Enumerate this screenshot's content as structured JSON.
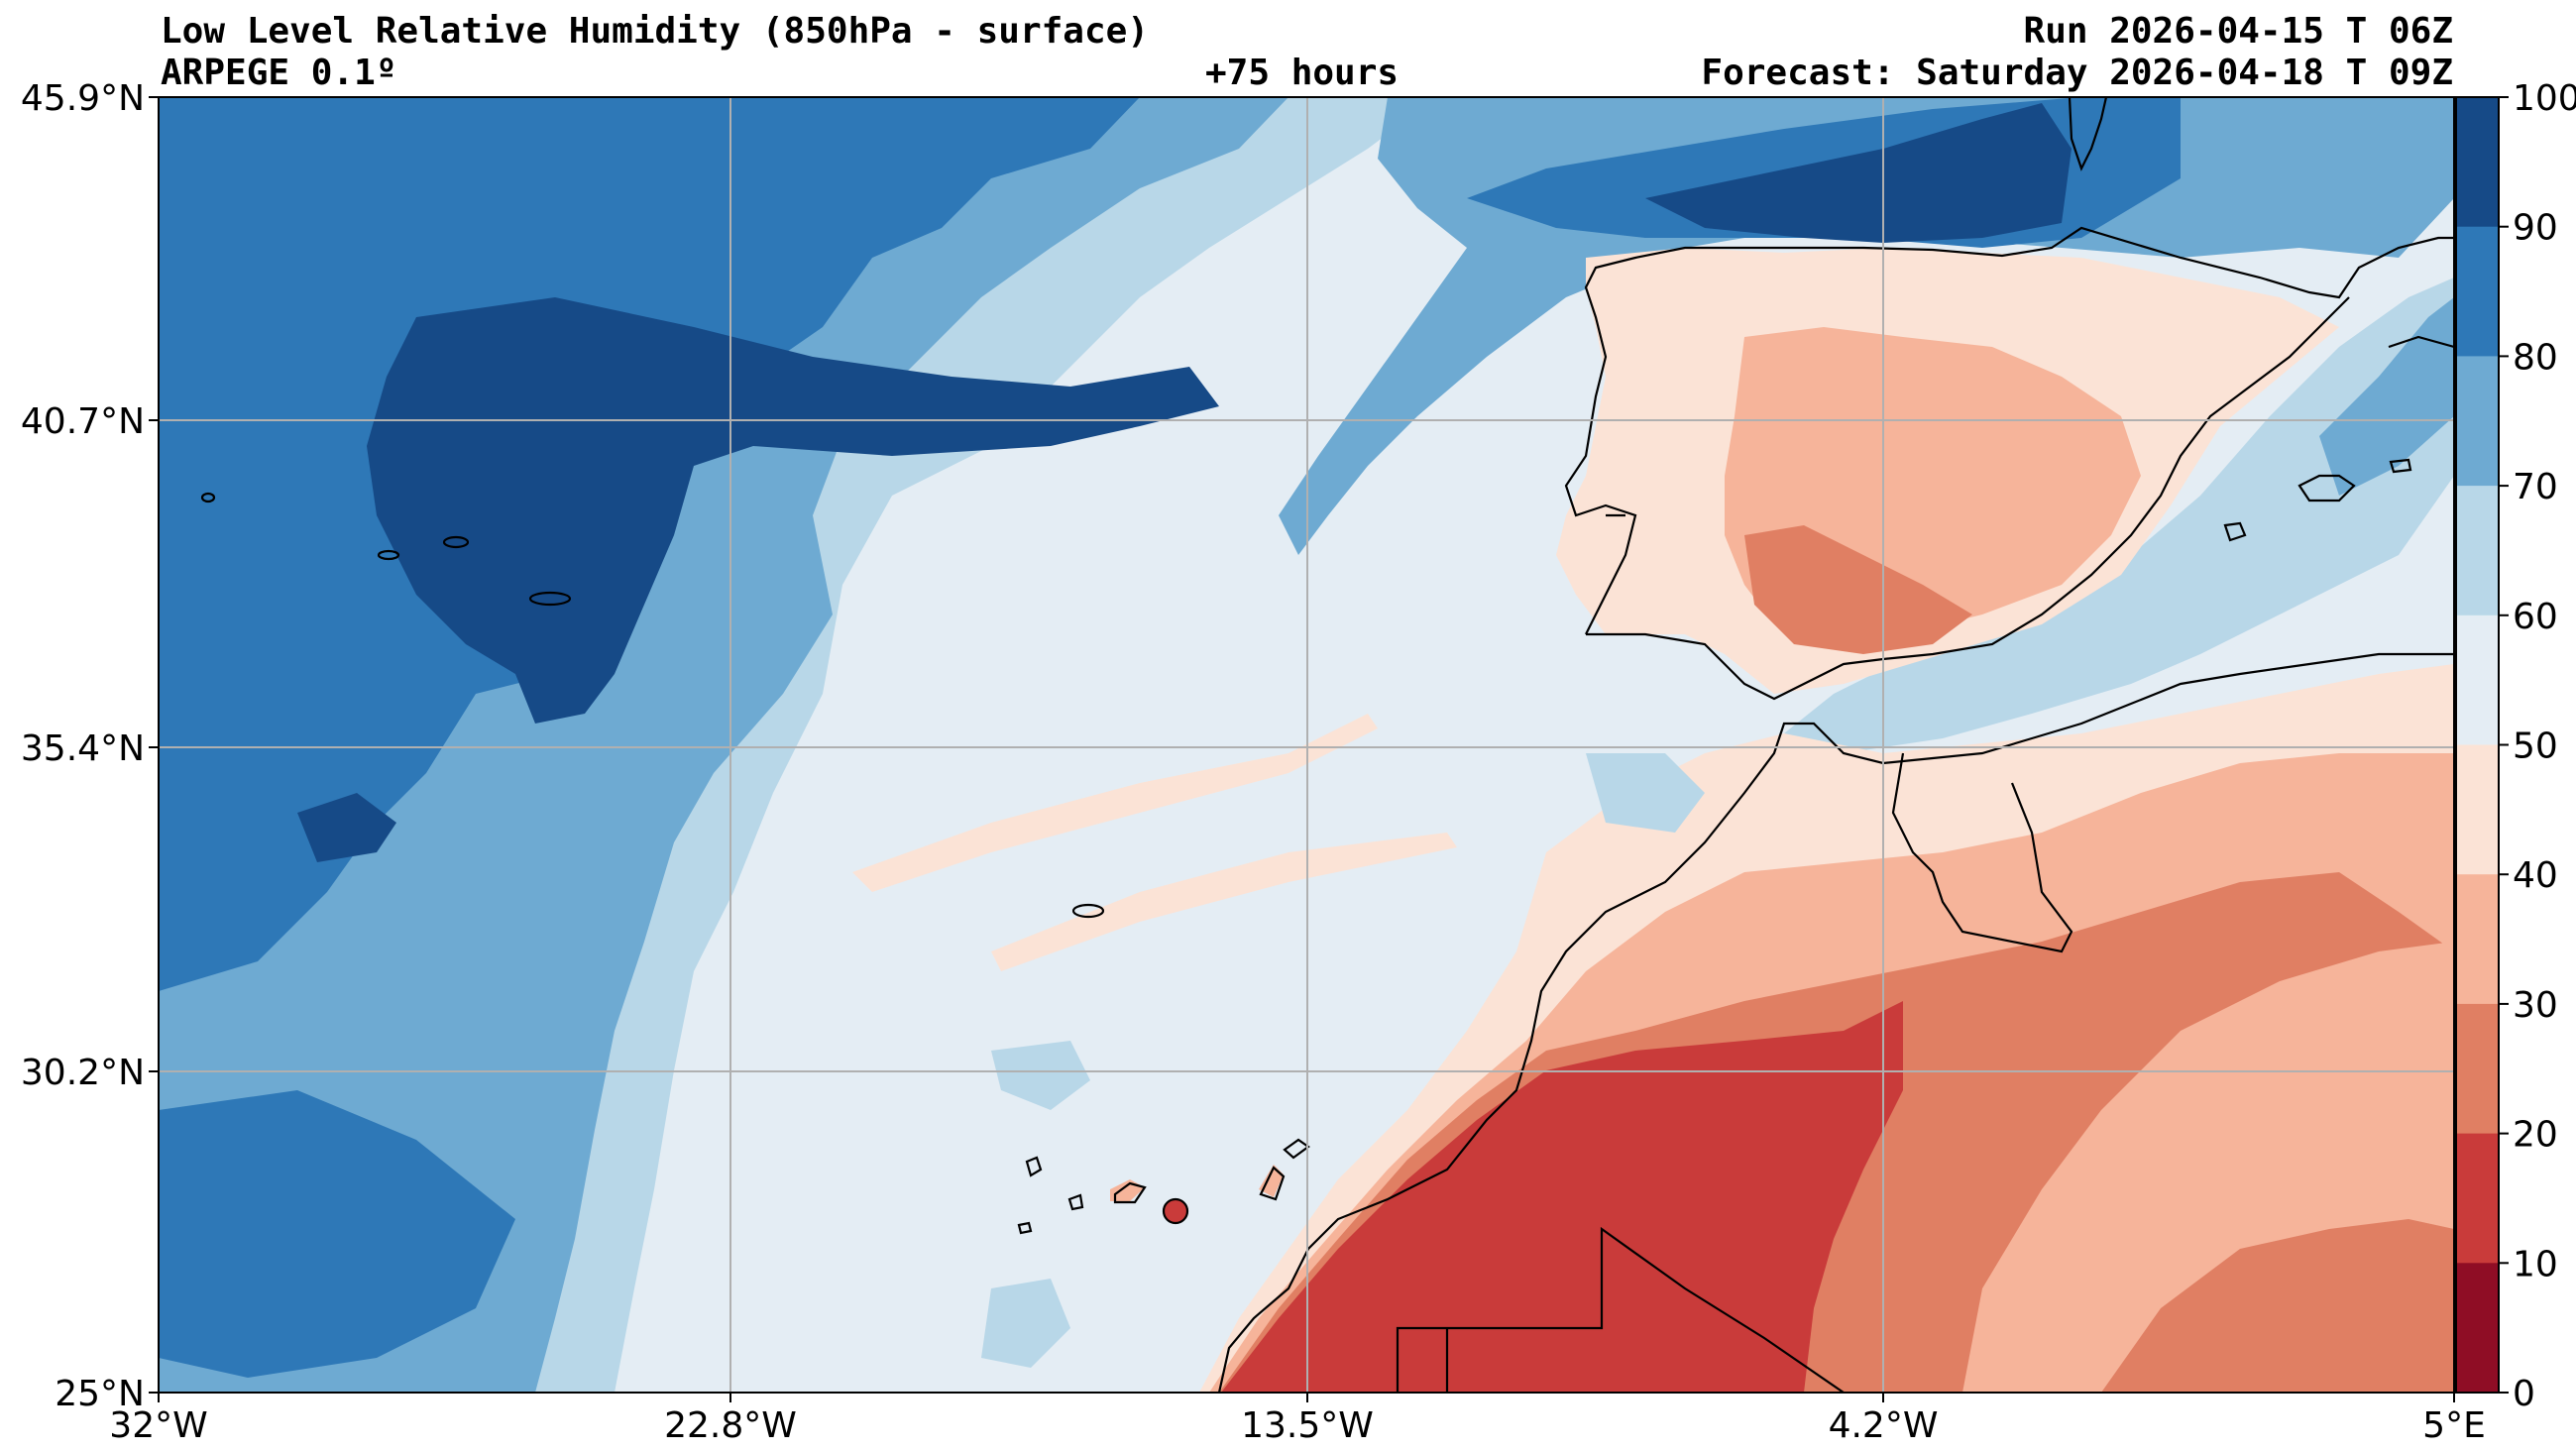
{
  "header": {
    "title": "Low Level Relative Humidity (850hPa - surface)",
    "model": "ARPEGE 0.1º",
    "lead": "+75 hours",
    "run": "Run 2026-04-15 T 06Z",
    "forecast": "Forecast: Saturday 2026-04-18 T 09Z"
  },
  "axes": {
    "lat_labels": [
      "45.9°N",
      "40.7°N",
      "35.4°N",
      "30.2°N",
      "25°N"
    ],
    "lon_labels": [
      "32°W",
      "22.8°W",
      "13.5°W",
      "4.2°W",
      "5°E"
    ]
  },
  "colorbar": {
    "ticks": [
      "100",
      "90",
      "80",
      "70",
      "60",
      "50",
      "40",
      "30",
      "20",
      "10",
      "0"
    ],
    "colors": [
      "#164a87",
      "#2e78b7",
      "#6eaad2",
      "#b8d7e8",
      "#e4edf4",
      "#fbe3d6",
      "#f6b49a",
      "#e07f63",
      "#c93b3a",
      "#8f0d25"
    ]
  },
  "field_colors": {
    "c90": "#164a87",
    "c80": "#2e78b7",
    "c70": "#6eaad2",
    "c60": "#b8d7e8",
    "c50": "#e4edf4",
    "c40": "#fbe3d6",
    "c30": "#f6b49a",
    "c20": "#e07f63",
    "c10": "#c93b3a"
  }
}
